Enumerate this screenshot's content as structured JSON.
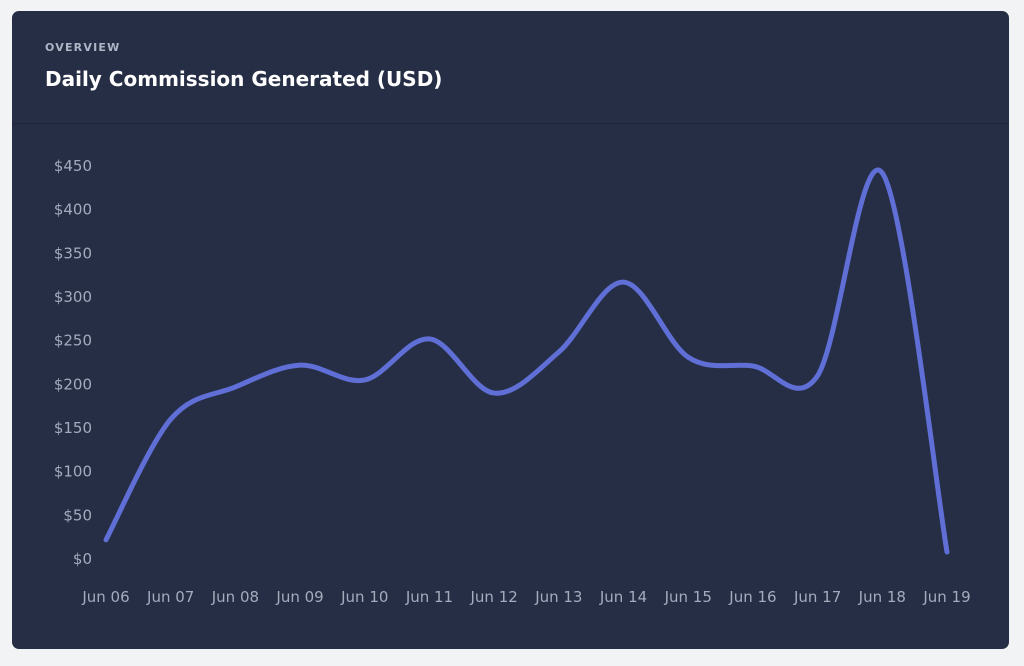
{
  "header": {
    "eyebrow": "OVERVIEW",
    "title": "Daily Commission Generated (USD)"
  },
  "colors": {
    "background": "#f2f3f5",
    "card": "#262e45",
    "line": "#5f6fd6",
    "tick_text": "#a3abbd"
  },
  "chart_data": {
    "type": "line",
    "title": "Daily Commission Generated (USD)",
    "xlabel": "",
    "ylabel": "",
    "categories": [
      "Jun 06",
      "Jun 07",
      "Jun 08",
      "Jun 09",
      "Jun 10",
      "Jun 11",
      "Jun 12",
      "Jun 13",
      "Jun 14",
      "Jun 15",
      "Jun 16",
      "Jun 17",
      "Jun 18",
      "Jun 19"
    ],
    "series": [
      {
        "name": "Daily Commission",
        "values": [
          22,
          160,
          197,
          222,
          205,
          252,
          190,
          237,
          317,
          231,
          221,
          210,
          442,
          8
        ]
      }
    ],
    "ylim": [
      0,
      450
    ],
    "yticks": [
      0,
      50,
      100,
      150,
      200,
      250,
      300,
      350,
      400,
      450
    ],
    "ytick_labels": [
      "$0",
      "$50",
      "$100",
      "$150",
      "$200",
      "$250",
      "$300",
      "$350",
      "$400",
      "$450"
    ],
    "grid": false,
    "legend": "none",
    "smooth": true
  }
}
